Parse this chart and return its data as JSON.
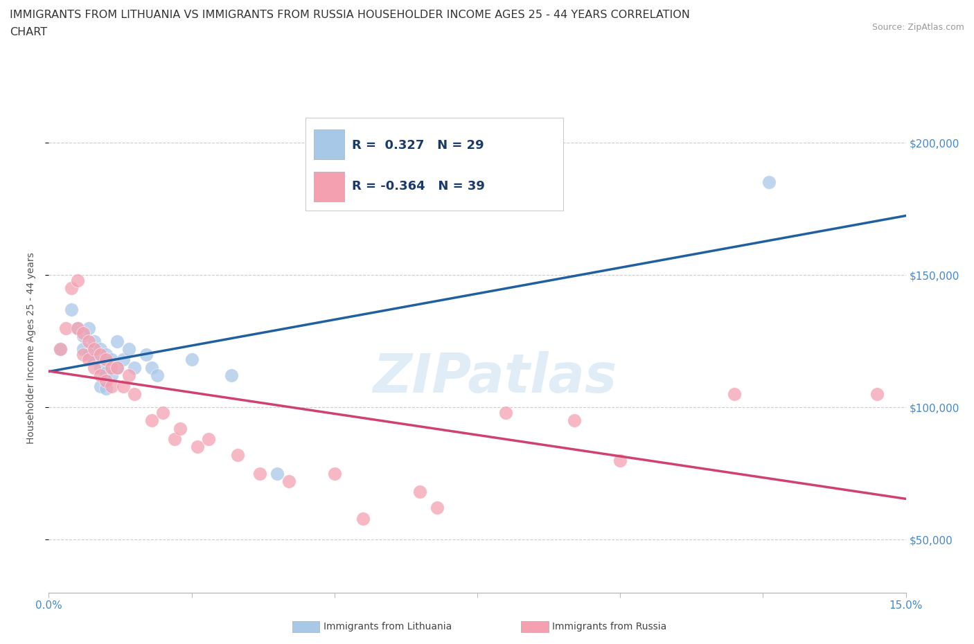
{
  "title_line1": "IMMIGRANTS FROM LITHUANIA VS IMMIGRANTS FROM RUSSIA HOUSEHOLDER INCOME AGES 25 - 44 YEARS CORRELATION",
  "title_line2": "CHART",
  "source": "Source: ZipAtlas.com",
  "ylabel": "Householder Income Ages 25 - 44 years",
  "xlim": [
    0.0,
    0.15
  ],
  "ylim": [
    30000,
    215000
  ],
  "yticks": [
    50000,
    100000,
    150000,
    200000
  ],
  "ytick_labels": [
    "$50,000",
    "$100,000",
    "$150,000",
    "$200,000"
  ],
  "xticks": [
    0.0,
    0.025,
    0.05,
    0.075,
    0.1,
    0.125,
    0.15
  ],
  "xtick_labels": [
    "0.0%",
    "",
    "",
    "",
    "",
    "",
    "15.0%"
  ],
  "lithuania_color": "#a8c8e8",
  "russia_color": "#f4a0b0",
  "lithuania_line_color": "#2060a0",
  "russia_line_color": "#d04070",
  "lithuania_R": 0.327,
  "lithuania_N": 29,
  "russia_R": -0.364,
  "russia_N": 39,
  "watermark": "ZIPatlas",
  "lithuania_points": [
    [
      0.002,
      122000
    ],
    [
      0.004,
      137000
    ],
    [
      0.005,
      130000
    ],
    [
      0.006,
      127000
    ],
    [
      0.006,
      122000
    ],
    [
      0.007,
      130000
    ],
    [
      0.007,
      120000
    ],
    [
      0.008,
      125000
    ],
    [
      0.008,
      118000
    ],
    [
      0.009,
      122000
    ],
    [
      0.009,
      115000
    ],
    [
      0.009,
      108000
    ],
    [
      0.01,
      120000
    ],
    [
      0.01,
      113000
    ],
    [
      0.01,
      107000
    ],
    [
      0.011,
      118000
    ],
    [
      0.011,
      112000
    ],
    [
      0.012,
      125000
    ],
    [
      0.012,
      115000
    ],
    [
      0.013,
      118000
    ],
    [
      0.014,
      122000
    ],
    [
      0.015,
      115000
    ],
    [
      0.017,
      120000
    ],
    [
      0.018,
      115000
    ],
    [
      0.019,
      112000
    ],
    [
      0.025,
      118000
    ],
    [
      0.032,
      112000
    ],
    [
      0.04,
      75000
    ],
    [
      0.126,
      185000
    ]
  ],
  "russia_points": [
    [
      0.002,
      122000
    ],
    [
      0.003,
      130000
    ],
    [
      0.004,
      145000
    ],
    [
      0.005,
      148000
    ],
    [
      0.005,
      130000
    ],
    [
      0.006,
      128000
    ],
    [
      0.006,
      120000
    ],
    [
      0.007,
      125000
    ],
    [
      0.007,
      118000
    ],
    [
      0.008,
      122000
    ],
    [
      0.008,
      115000
    ],
    [
      0.009,
      120000
    ],
    [
      0.009,
      112000
    ],
    [
      0.01,
      118000
    ],
    [
      0.01,
      110000
    ],
    [
      0.011,
      115000
    ],
    [
      0.011,
      108000
    ],
    [
      0.012,
      115000
    ],
    [
      0.013,
      108000
    ],
    [
      0.014,
      112000
    ],
    [
      0.015,
      105000
    ],
    [
      0.018,
      95000
    ],
    [
      0.02,
      98000
    ],
    [
      0.022,
      88000
    ],
    [
      0.023,
      92000
    ],
    [
      0.026,
      85000
    ],
    [
      0.028,
      88000
    ],
    [
      0.033,
      82000
    ],
    [
      0.037,
      75000
    ],
    [
      0.042,
      72000
    ],
    [
      0.05,
      75000
    ],
    [
      0.055,
      58000
    ],
    [
      0.065,
      68000
    ],
    [
      0.068,
      62000
    ],
    [
      0.08,
      98000
    ],
    [
      0.092,
      95000
    ],
    [
      0.1,
      80000
    ],
    [
      0.12,
      105000
    ],
    [
      0.145,
      105000
    ]
  ]
}
